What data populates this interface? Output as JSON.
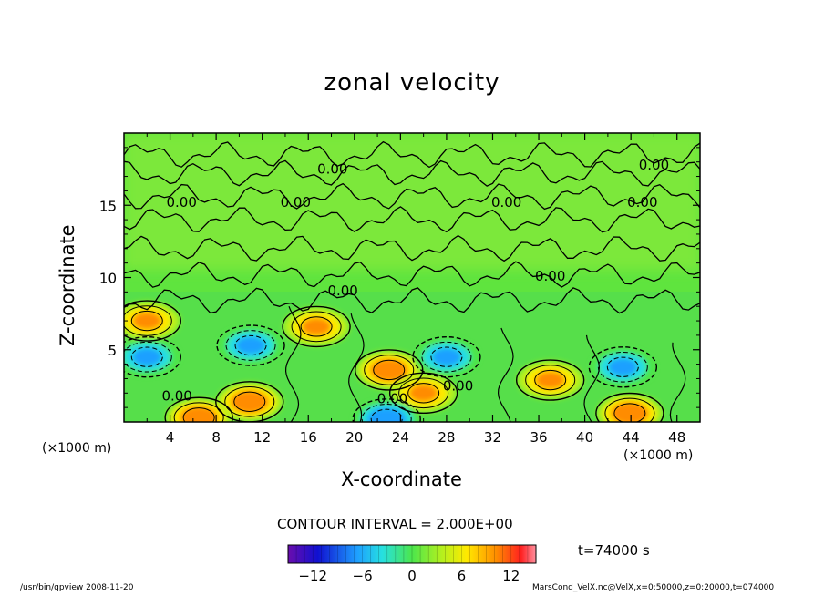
{
  "chart_data": {
    "type": "heatmap",
    "title": "zonal velocity",
    "xlabel": "X-coordinate",
    "ylabel": "Z-coordinate",
    "x_unit_left": "(×1000 m)",
    "x_unit_right": "(×1000 m)",
    "xlim": [
      0,
      50
    ],
    "ylim": [
      0,
      20
    ],
    "x_ticks": [
      4,
      8,
      12,
      16,
      20,
      24,
      28,
      32,
      36,
      40,
      44,
      48
    ],
    "y_ticks": [
      5,
      10,
      15
    ],
    "contour_labels": [
      {
        "x": 18.1,
        "y": 17.5,
        "text": "0.00"
      },
      {
        "x": 46.0,
        "y": 17.8,
        "text": "0.00"
      },
      {
        "x": 5.0,
        "y": 15.2,
        "text": "0.00"
      },
      {
        "x": 14.9,
        "y": 15.2,
        "text": "0.00"
      },
      {
        "x": 33.2,
        "y": 15.2,
        "text": "0.00"
      },
      {
        "x": 45.0,
        "y": 15.2,
        "text": "0.00"
      },
      {
        "x": 37.0,
        "y": 10.1,
        "text": "0.00"
      },
      {
        "x": 19.0,
        "y": 9.1,
        "text": "0.00"
      },
      {
        "x": 29.0,
        "y": 2.5,
        "text": "0.00"
      },
      {
        "x": 4.6,
        "y": 1.8,
        "text": "0.00"
      },
      {
        "x": 23.3,
        "y": 1.6,
        "text": "0.00"
      }
    ],
    "contour_interval": "CONTOUR INTERVAL = 2.000E+00",
    "time": "t=74000 s",
    "colorbar": {
      "range": [
        -15,
        15
      ],
      "ticks": [
        -12,
        -6,
        0,
        6,
        12
      ]
    },
    "features": [
      {
        "x": 2.0,
        "z": 7.0,
        "value": 8,
        "sign": "positive"
      },
      {
        "x": 16.7,
        "z": 6.6,
        "value": 8,
        "sign": "positive"
      },
      {
        "x": 23.0,
        "z": 3.6,
        "value": 10,
        "sign": "positive"
      },
      {
        "x": 26.0,
        "z": 2.0,
        "value": 8,
        "sign": "positive"
      },
      {
        "x": 10.9,
        "z": 1.4,
        "value": 10,
        "sign": "positive"
      },
      {
        "x": 37.0,
        "z": 2.9,
        "value": 8,
        "sign": "positive"
      },
      {
        "x": 43.9,
        "z": 0.6,
        "value": 10,
        "sign": "positive"
      },
      {
        "x": 6.5,
        "z": 0.3,
        "value": 10,
        "sign": "positive"
      },
      {
        "x": 11.0,
        "z": 5.3,
        "value": -6,
        "sign": "negative"
      },
      {
        "x": 2.0,
        "z": 4.5,
        "value": -6,
        "sign": "negative"
      },
      {
        "x": 28.0,
        "z": 4.5,
        "value": -6,
        "sign": "negative"
      },
      {
        "x": 43.3,
        "z": 3.8,
        "value": -6,
        "sign": "negative"
      },
      {
        "x": 22.8,
        "z": 0.2,
        "value": -10,
        "sign": "negative"
      }
    ]
  },
  "footer": {
    "left": "/usr/bin/gpview   2008-11-20",
    "right": "MarsCond_VelX.nc@VelX,x=0:50000,z=0:20000,t=074000"
  }
}
